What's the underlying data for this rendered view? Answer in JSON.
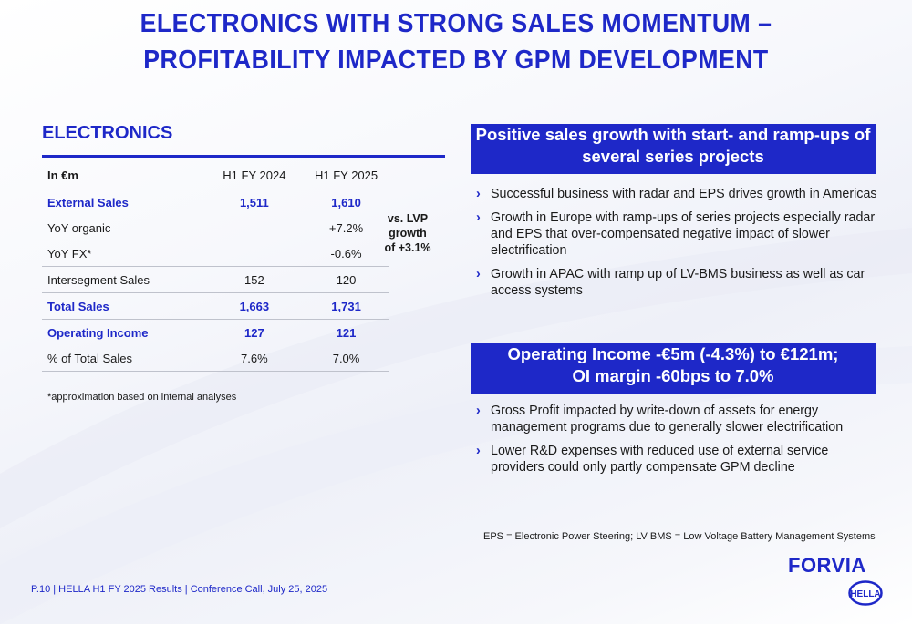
{
  "title": {
    "line1": "ELECTRONICS WITH STRONG SALES MOMENTUM –",
    "line2": "PROFITABILITY IMPACTED BY GPM DEVELOPMENT"
  },
  "section": {
    "title": "ELECTRONICS"
  },
  "table": {
    "header": {
      "label": "In €m",
      "col1": "H1 FY 2024",
      "col2": "H1 FY 2025"
    },
    "rows": [
      {
        "label": "External Sales",
        "v1": "1,511",
        "v2": "1,610"
      },
      {
        "label": "YoY organic",
        "v1": "",
        "v2": "+7.2%"
      },
      {
        "label": "YoY FX*",
        "v1": "",
        "v2": "-0.6%"
      },
      {
        "label": "Intersegment Sales",
        "v1": "152",
        "v2": "120"
      },
      {
        "label": "Total Sales",
        "v1": "1,663",
        "v2": "1,731"
      },
      {
        "label": "Operating Income",
        "v1": "127",
        "v2": "121"
      },
      {
        "label": "% of Total Sales",
        "v1": "7.6%",
        "v2": "7.0%"
      }
    ],
    "lvp_note": {
      "line1": "vs. LVP",
      "line2": "growth",
      "line3": "of +3.1%"
    },
    "footnote": "*approximation based on internal analyses"
  },
  "box1": {
    "line1": "Positive sales growth with start- and ramp-ups of",
    "line2": "several series projects"
  },
  "bullets1": [
    "Successful business with radar and EPS drives growth in Americas",
    "Growth in Europe with ramp-ups of series projects especially radar and EPS that over-compensated negative impact of slower electrification",
    "Growth in APAC with ramp up of LV-BMS business as well as car access systems"
  ],
  "box2": {
    "line1": "Operating Income -€5m (-4.3%) to €121m;",
    "line2": "OI margin -60bps to 7.0%"
  },
  "bullets2": [
    "Gross Profit impacted by write-down of assets for energy management programs due to generally slower electrification",
    "Lower R&D expenses with reduced use of external service providers could only partly compensate GPM decline"
  ],
  "abbreviations": "EPS = Electronic Power Steering; LV BMS = Low Voltage Battery Management Systems",
  "footer": "P.10 | HELLA H1 FY 2025 Results | Conference Call, July 25, 2025",
  "logos": {
    "forvia": "FORVIA",
    "hella": "HELLA"
  },
  "colors": {
    "brand_blue": "#1e28c8",
    "text": "#1a1a1a",
    "background": "#f4f5fa"
  }
}
